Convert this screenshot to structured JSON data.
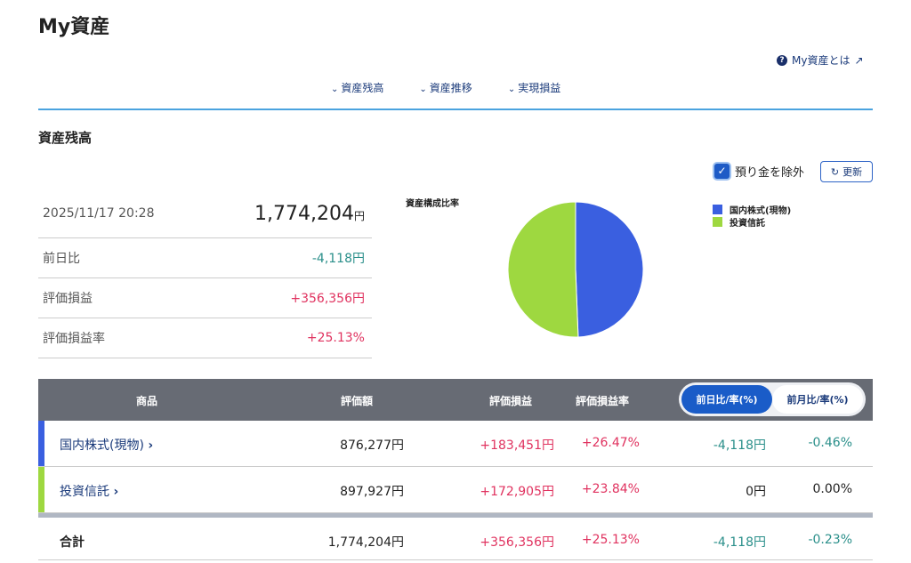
{
  "title": "My資産",
  "help_link": "My資産とは",
  "anchors": [
    "資産残高",
    "資産推移",
    "実現損益"
  ],
  "section_title": "資産残高",
  "exclude_deposit": {
    "label": "預り金を除外",
    "checked": true
  },
  "refresh_label": "更新",
  "summary": {
    "datetime": "2025/11/17 20:28",
    "total": "1,774,204",
    "yen": "円",
    "rows": [
      {
        "label": "前日比",
        "value": "-4,118円"
      },
      {
        "label": "評価損益",
        "value": "+356,356円"
      },
      {
        "label": "評価損益率",
        "value": "+25.13%"
      }
    ]
  },
  "chart_data": {
    "type": "pie",
    "title": "資産構成比率",
    "categories": [
      "国内株式(現物)",
      "投資信託"
    ],
    "values": [
      876277,
      897927
    ],
    "colors": [
      "#3a5fe0",
      "#9ed840"
    ]
  },
  "table": {
    "headers": [
      "商品",
      "評価額",
      "評価損益",
      "評価損益率"
    ],
    "toggle": [
      "前日比/率(%)",
      "前月比/率(%)"
    ],
    "rows": [
      {
        "name": "国内株式(現物)",
        "value": "876,277円",
        "pl": "+183,451円",
        "plr": "+26.47%",
        "d": "-4,118円",
        "dr": "-0.46%",
        "color": "#3a5fe0"
      },
      {
        "name": "投資信託",
        "value": "897,927円",
        "pl": "+172,905円",
        "plr": "+23.84%",
        "d": "0円",
        "dr": "0.00%",
        "color": "#9ed840"
      }
    ],
    "total": {
      "name": "合計",
      "value": "1,774,204円",
      "pl": "+356,356円",
      "plr": "+25.13%",
      "d": "-4,118円",
      "dr": "-0.23%"
    }
  }
}
